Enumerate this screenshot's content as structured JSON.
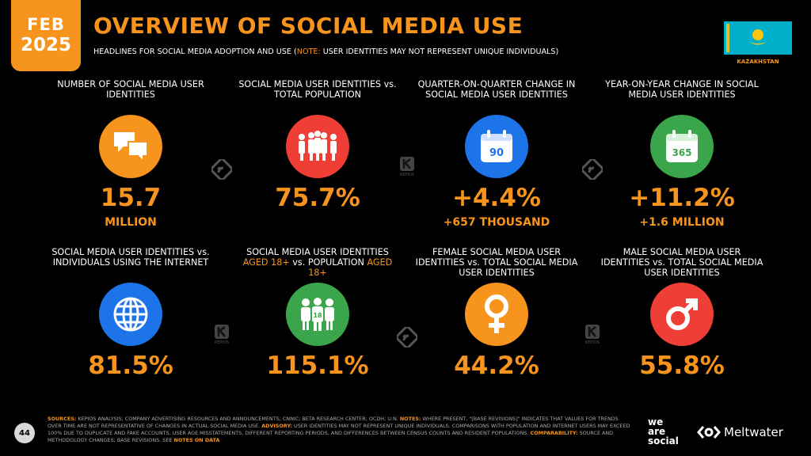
{
  "header": {
    "month": "FEB",
    "year": "2025",
    "title": "OVERVIEW OF SOCIAL MEDIA USE",
    "subtitle_main": "HEADLINES FOR SOCIAL MEDIA ADOPTION AND USE (",
    "subtitle_note_label": "NOTE:",
    "subtitle_note": " USER IDENTITIES MAY NOT REPRESENT UNIQUE INDIVIDUALS)",
    "country": "KAZAKHSTAN"
  },
  "tiles": [
    {
      "label": "NUMBER OF SOCIAL MEDIA USER IDENTITIES",
      "value": "15.7",
      "sub": "MILLION",
      "icon": "speech-bubbles-icon",
      "color": "#f7941d"
    },
    {
      "label": "SOCIAL MEDIA USER IDENTITIES vs. TOTAL POPULATION",
      "value": "75.7%",
      "sub": "",
      "icon": "people-group-icon",
      "color": "#ef3e36"
    },
    {
      "label": "QUARTER-ON-QUARTER CHANGE IN SOCIAL MEDIA USER IDENTITIES",
      "value": "+4.4%",
      "sub": "+657 THOUSAND",
      "icon": "calendar-90-icon",
      "icon_text": "90",
      "color": "#1c74e8"
    },
    {
      "label": "YEAR-ON-YEAR CHANGE IN SOCIAL MEDIA USER IDENTITIES",
      "value": "+11.2%",
      "sub": "+1.6 MILLION",
      "icon": "calendar-365-icon",
      "icon_text": "365",
      "color": "#3aa54a"
    },
    {
      "label": "SOCIAL MEDIA USER IDENTITIES vs. INDIVIDUALS USING THE INTERNET",
      "value": "81.5%",
      "sub": "",
      "icon": "globe-icon",
      "color": "#1c74e8"
    },
    {
      "label_a": "SOCIAL MEDIA USER IDENTITIES ",
      "label_b": "AGED 18+",
      "label_c": " vs. POPULATION ",
      "label_d": "AGED 18+",
      "value": "115.1%",
      "sub": "",
      "icon": "adults-18-icon",
      "icon_text": "18",
      "color": "#3aa54a"
    },
    {
      "label": "FEMALE SOCIAL MEDIA USER IDENTITIES vs. TOTAL SOCIAL MEDIA USER IDENTITIES",
      "value": "44.2%",
      "sub": "",
      "icon": "female-symbol-icon",
      "color": "#f7941d"
    },
    {
      "label": "MALE SOCIAL MEDIA USER IDENTITIES vs. TOTAL SOCIAL MEDIA USER IDENTITIES",
      "value": "55.8%",
      "sub": "",
      "icon": "male-symbol-icon",
      "color": "#ef3e36"
    }
  ],
  "kepios_text": "KEPIOS",
  "footer": {
    "page": "44",
    "sources_label": "SOURCES:",
    "sources": " KEPIOS ANALYSIS; COMPANY ADVERTISING RESOURCES AND ANNOUNCEMENTS; CNNIC; BETA RESEARCH CENTER; OCDH; U.N. ",
    "notes_label": "NOTES:",
    "notes": " WHERE PRESENT, \"[BASE REVISIONS]\" INDICATES THAT VALUES FOR TRENDS OVER TIME ARE NOT REPRESENTATIVE OF CHANGES IN ACTUAL SOCIAL MEDIA USE. ",
    "advisory_label": "ADVISORY:",
    "advisory": " USER IDENTITIES MAY NOT REPRESENT UNIQUE INDIVIDUALS. COMPARISONS WITH POPULATION AND INTERNET USERS MAY EXCEED 100% DUE TO DUPLICATE AND FAKE ACCOUNTS, USER AGE MISSTATEMENTS, DIFFERENT REPORTING PERIODS, AND DIFFERENCES BETWEEN CENSUS COUNTS AND RESIDENT POPULATIONS. ",
    "comparability_label": "COMPARABILITY:",
    "comparability": " SOURCE AND METHODOLOGY CHANGES; BASE REVISIONS. SEE ",
    "notes_link": "NOTES ON DATA",
    "was_1": "we",
    "was_2": "are",
    "was_3": "social",
    "meltwater": "Meltwater"
  }
}
